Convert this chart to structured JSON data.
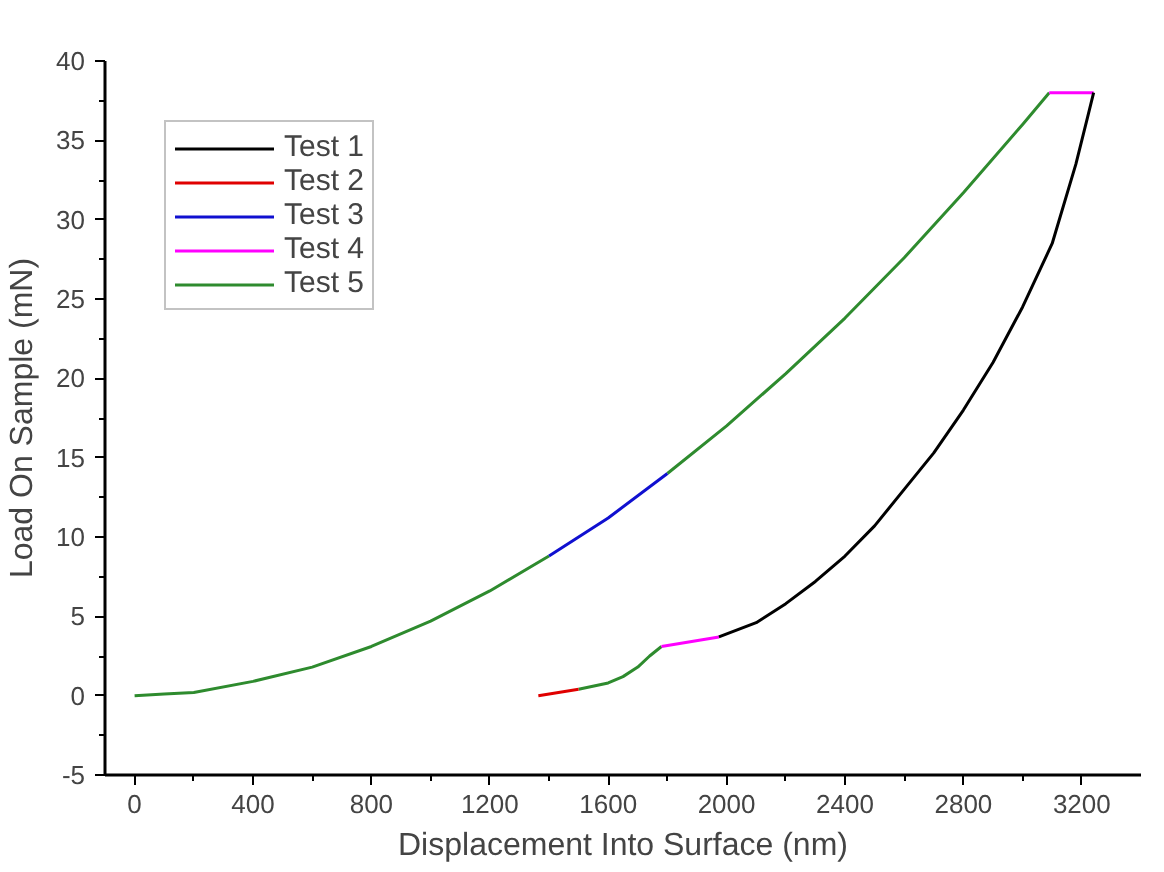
{
  "chart_data": {
    "type": "line",
    "xlabel": "Displacement Into Surface (nm)",
    "ylabel": "Load On Sample (mN)",
    "x": [
      0,
      100,
      200,
      400,
      600,
      800,
      1000,
      1200,
      1400,
      1600,
      1800,
      2000,
      2200,
      2400,
      2600,
      2800,
      3000,
      3090,
      3240,
      3220,
      3180,
      3100,
      3000,
      2900,
      2800,
      2700,
      2600,
      2500,
      2400,
      2300,
      2200,
      2100,
      1974,
      1780,
      1740,
      1700,
      1650,
      1600,
      1500,
      1364
    ],
    "series": [
      {
        "name": "Test 1",
        "color": "#000000",
        "values": [
          null,
          null,
          null,
          null,
          null,
          null,
          null,
          null,
          null,
          null,
          null,
          null,
          null,
          null,
          null,
          null,
          null,
          null,
          38,
          36.5,
          33.5,
          28.5,
          24.5,
          21,
          18,
          15.3,
          13,
          10.7,
          8.8,
          7.2,
          5.8,
          4.6,
          3.7,
          null,
          null,
          null,
          null,
          null,
          null,
          null
        ]
      },
      {
        "name": "Test 2",
        "color": "#e00000",
        "values": [
          null,
          null,
          null,
          null,
          null,
          null,
          null,
          null,
          null,
          null,
          null,
          null,
          null,
          null,
          null,
          null,
          null,
          null,
          null,
          null,
          null,
          null,
          null,
          null,
          null,
          null,
          null,
          null,
          null,
          null,
          null,
          null,
          null,
          null,
          null,
          null,
          null,
          null,
          0.4,
          0
        ]
      },
      {
        "name": "Test 3",
        "color": "#1010d0",
        "values": [
          null,
          null,
          null,
          null,
          null,
          null,
          null,
          null,
          8.8,
          11.2,
          14,
          null,
          null,
          null,
          null,
          null,
          null,
          null,
          null,
          null,
          null,
          null,
          null,
          null,
          null,
          null,
          null,
          null,
          null,
          null,
          null,
          null,
          null,
          null,
          null,
          null,
          null,
          null,
          null,
          null
        ]
      },
      {
        "name": "Test 4",
        "color": "#ff00ff",
        "values": [
          null,
          null,
          null,
          null,
          null,
          null,
          null,
          null,
          null,
          null,
          null,
          null,
          null,
          null,
          null,
          null,
          null,
          38,
          38,
          null,
          null,
          null,
          null,
          null,
          null,
          null,
          null,
          null,
          null,
          null,
          null,
          null,
          3.7,
          3.1,
          null,
          null,
          null,
          null,
          null,
          null
        ]
      },
      {
        "name": "Test 5",
        "color": "#2e8b2e",
        "values": [
          0,
          0.1,
          0.2,
          0.9,
          1.8,
          3.1,
          4.7,
          6.6,
          8.8,
          null,
          14,
          17,
          20.3,
          23.8,
          27.6,
          31.7,
          36,
          38,
          null,
          null,
          null,
          null,
          null,
          null,
          null,
          null,
          null,
          null,
          null,
          null,
          null,
          null,
          null,
          3.1,
          2.5,
          1.8,
          1.2,
          0.8,
          0.4,
          null
        ]
      }
    ],
    "xlim": [
      -100,
      3400
    ],
    "xticks": [
      0,
      400,
      800,
      1200,
      1600,
      2000,
      2400,
      2800,
      3200
    ],
    "ylim": [
      -5,
      40
    ],
    "yticks": [
      -5,
      0,
      5,
      10,
      15,
      20,
      25,
      30,
      35,
      40
    ],
    "grid": false,
    "legend": "top left",
    "marker": "none",
    "line_style": "solid"
  }
}
